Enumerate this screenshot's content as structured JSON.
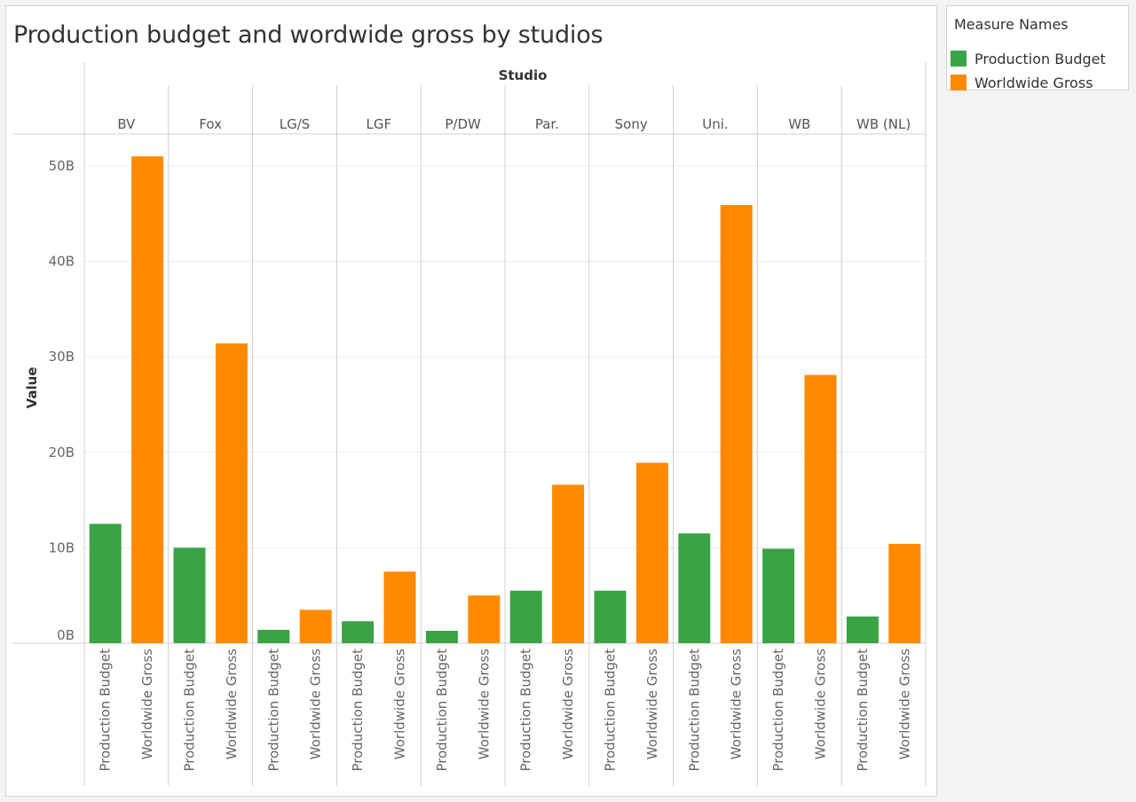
{
  "page": {
    "title": "Production budget and wordwide gross by studios"
  },
  "legend": {
    "title": "Measure Names",
    "items": [
      {
        "label": "Production Budget",
        "color": "#3aa346"
      },
      {
        "label": "Worldwide Gross",
        "color": "#ff8a00"
      }
    ]
  },
  "chart_data": {
    "type": "bar",
    "title": "Production budget and wordwide gross by studios",
    "column_header": "Studio",
    "ylabel": "Value",
    "ylim": [
      0,
      52
    ],
    "y_unit": "B",
    "yticks": [
      0,
      10,
      20,
      30,
      40,
      50
    ],
    "ytick_labels": [
      "0B",
      "10B",
      "20B",
      "30B",
      "40B",
      "50B"
    ],
    "grid": true,
    "legend_position": "right",
    "categories": [
      "BV",
      "Fox",
      "LG/S",
      "LGF",
      "P/DW",
      "Par.",
      "Sony",
      "Uni.",
      "WB",
      "WB (NL)"
    ],
    "x_labels": [
      "Production Budget",
      "Worldwide Gross"
    ],
    "series": [
      {
        "name": "Production Budget",
        "color": "#3aa346",
        "values": [
          12.5,
          10.0,
          1.4,
          2.3,
          1.3,
          5.5,
          5.5,
          11.5,
          9.9,
          2.8
        ]
      },
      {
        "name": "Worldwide Gross",
        "color": "#ff8a00",
        "values": [
          51.0,
          31.4,
          3.5,
          7.5,
          5.0,
          16.6,
          18.9,
          45.9,
          28.1,
          10.4
        ]
      }
    ]
  }
}
